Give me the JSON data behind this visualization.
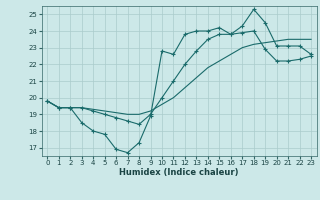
{
  "xlabel": "Humidex (Indice chaleur)",
  "ylabel": "",
  "bg_color": "#cce8e8",
  "grid_color": "#aacccc",
  "line_color": "#1a6b6b",
  "xlim": [
    -0.5,
    23.5
  ],
  "ylim": [
    16.5,
    25.5
  ],
  "xticks": [
    0,
    1,
    2,
    3,
    4,
    5,
    6,
    7,
    8,
    9,
    10,
    11,
    12,
    13,
    14,
    15,
    16,
    17,
    18,
    19,
    20,
    21,
    22,
    23
  ],
  "yticks": [
    17,
    18,
    19,
    20,
    21,
    22,
    23,
    24,
    25
  ],
  "series1_x": [
    0,
    1,
    2,
    3,
    4,
    5,
    6,
    7,
    8,
    9,
    10,
    11,
    12,
    13,
    14,
    15,
    16,
    17,
    18,
    19,
    20,
    21,
    22,
    23
  ],
  "series1_y": [
    19.8,
    19.4,
    19.4,
    18.5,
    18.0,
    17.8,
    16.9,
    16.7,
    17.3,
    18.9,
    22.8,
    22.6,
    23.8,
    24.0,
    24.0,
    24.2,
    23.8,
    24.3,
    25.3,
    24.5,
    23.1,
    23.1,
    23.1,
    22.6
  ],
  "series2_x": [
    0,
    1,
    2,
    3,
    4,
    5,
    6,
    7,
    8,
    9,
    10,
    11,
    12,
    13,
    14,
    15,
    16,
    17,
    18,
    19,
    20,
    21,
    22,
    23
  ],
  "series2_y": [
    19.8,
    19.4,
    19.4,
    19.4,
    19.3,
    19.2,
    19.1,
    19.0,
    19.0,
    19.2,
    19.6,
    20.0,
    20.6,
    21.2,
    21.8,
    22.2,
    22.6,
    23.0,
    23.2,
    23.3,
    23.4,
    23.5,
    23.5,
    23.5
  ],
  "series3_x": [
    0,
    1,
    2,
    3,
    4,
    5,
    6,
    7,
    8,
    9,
    10,
    11,
    12,
    13,
    14,
    15,
    16,
    17,
    18,
    19,
    20,
    21,
    22,
    23
  ],
  "series3_y": [
    19.8,
    19.4,
    19.4,
    19.4,
    19.2,
    19.0,
    18.8,
    18.6,
    18.4,
    19.0,
    20.0,
    21.0,
    22.0,
    22.8,
    23.5,
    23.8,
    23.8,
    23.9,
    24.0,
    22.9,
    22.2,
    22.2,
    22.3,
    22.5
  ]
}
